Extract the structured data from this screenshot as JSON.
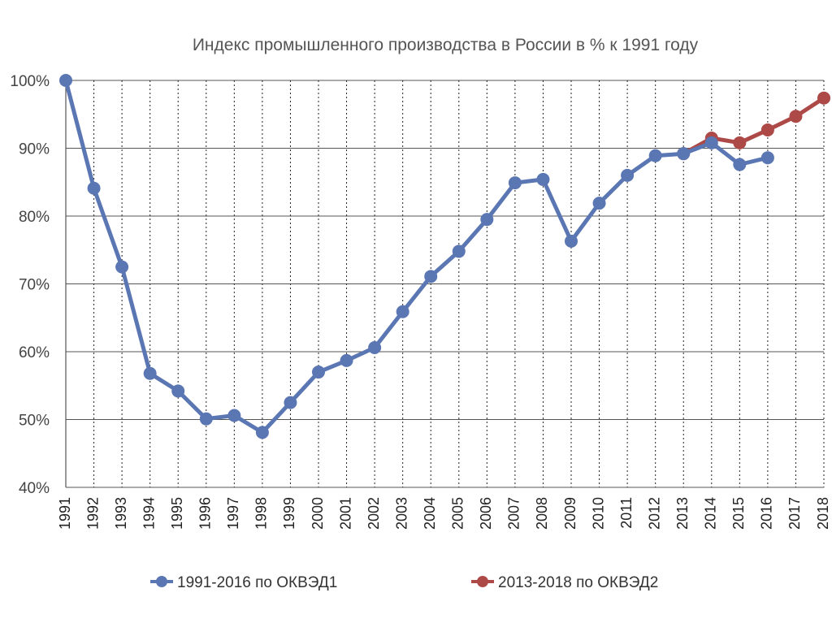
{
  "chart_data": {
    "type": "line",
    "title": "Индекс промышленного производства в России в % к 1991 году",
    "xlabel": "",
    "ylabel": "",
    "ylim": [
      40,
      100
    ],
    "y_ticks": [
      "40%",
      "50%",
      "60%",
      "70%",
      "80%",
      "90%",
      "100%"
    ],
    "categories": [
      "1991",
      "1992",
      "1993",
      "1994",
      "1995",
      "1996",
      "1997",
      "1998",
      "1999",
      "2000",
      "2001",
      "2002",
      "2003",
      "2004",
      "2005",
      "2006",
      "2007",
      "2008",
      "2009",
      "2010",
      "2011",
      "2012",
      "2013",
      "2014",
      "2015",
      "2016",
      "2017",
      "2018"
    ],
    "grid": true,
    "legend_position": "bottom",
    "series": [
      {
        "name": "1991-2016 по ОКВЭД1",
        "color": "#5b77b3",
        "x": [
          "1991",
          "1992",
          "1993",
          "1994",
          "1995",
          "1996",
          "1997",
          "1998",
          "1999",
          "2000",
          "2001",
          "2002",
          "2003",
          "2004",
          "2005",
          "2006",
          "2007",
          "2008",
          "2009",
          "2010",
          "2011",
          "2012",
          "2013",
          "2014",
          "2015",
          "2016"
        ],
        "values": [
          100,
          84.1,
          72.5,
          56.8,
          54.2,
          50.1,
          50.6,
          48.1,
          52.5,
          57.0,
          58.7,
          60.6,
          65.9,
          71.1,
          74.8,
          79.5,
          84.9,
          85.4,
          76.3,
          81.9,
          86.0,
          88.9,
          89.2,
          90.8,
          87.6,
          88.6
        ]
      },
      {
        "name": "2013-2018 по ОКВЭД2",
        "color": "#ad4a48",
        "x": [
          "2013",
          "2014",
          "2015",
          "2016",
          "2017",
          "2018"
        ],
        "values": [
          89.2,
          91.5,
          90.8,
          92.7,
          94.7,
          97.4
        ]
      }
    ]
  }
}
